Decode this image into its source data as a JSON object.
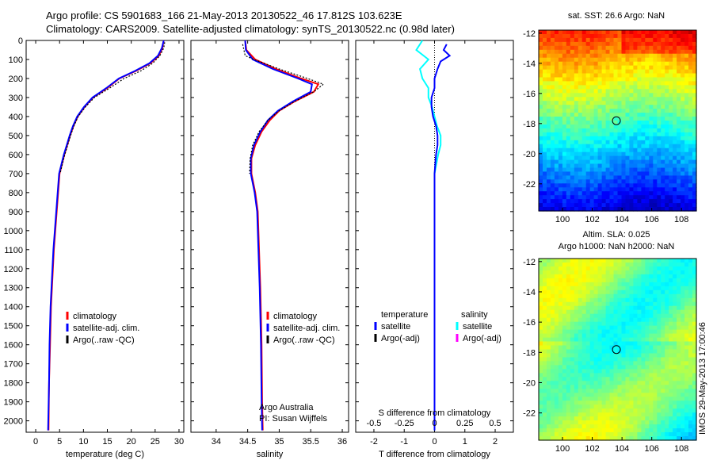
{
  "title": {
    "line1": "Argo profile: CS 5901683_166 21-May-2013 20130522_46 17.812S 103.623E",
    "line2": "Climatology: CARS2009. Satellite-adjusted climatology: synTS_20130522.nc (0.98d later)"
  },
  "maps": {
    "sst_title": "sat. SST: 26.6 Argo: NaN",
    "sla_title_1": "Altim. SLA: 0.025",
    "sla_title_2": "Argo h1000: NaN h2000: NaN"
  },
  "stamp": "IMOS 29-May-2013 17:00:46",
  "colors": {
    "climatology": "#ff0000",
    "satellite": "#0000ff",
    "argo": "#000000",
    "sal_satellite": "#00ffff",
    "sal_argo": "#ff00ff",
    "marker": "#000000"
  },
  "chart_data": [
    {
      "type": "line",
      "xlabel": "temperature (deg C)",
      "ylabel": "",
      "xlim": [
        -2,
        31
      ],
      "ylim": [
        2060,
        0
      ],
      "xticks": [
        0,
        5,
        10,
        15,
        20,
        25,
        30
      ],
      "yticks": [
        0,
        100,
        200,
        300,
        400,
        500,
        600,
        700,
        800,
        900,
        1000,
        1100,
        1200,
        1300,
        1400,
        1500,
        1600,
        1700,
        1800,
        1900,
        2000
      ],
      "legend": [
        "climatology",
        "satellite-adj. clim.",
        "Argo(..raw -QC)"
      ],
      "series": [
        {
          "name": "climatology",
          "x": [
            26.8,
            26.5,
            25.8,
            24.0,
            21.0,
            17.5,
            15.0,
            12.0,
            10.2,
            8.8,
            7.9,
            7.2,
            6.6,
            6.0,
            5.5,
            5.0,
            4.7,
            4.4,
            4.1,
            3.8,
            3.6,
            3.4,
            3.2,
            3.0,
            2.8,
            2.7
          ],
          "y": [
            0,
            40,
            80,
            120,
            160,
            200,
            250,
            300,
            350,
            400,
            450,
            500,
            550,
            600,
            650,
            700,
            800,
            900,
            1000,
            1100,
            1200,
            1300,
            1400,
            1600,
            1800,
            2050
          ]
        },
        {
          "name": "satellite-adj. clim.",
          "x": [
            26.8,
            26.4,
            25.6,
            23.8,
            20.8,
            17.4,
            14.8,
            11.9,
            10.1,
            8.7,
            7.8,
            7.1,
            6.5,
            5.9,
            5.4,
            4.9,
            4.6,
            4.3,
            4.0,
            3.7,
            3.5,
            3.3,
            3.1,
            2.9,
            2.8,
            2.6
          ],
          "y": [
            0,
            40,
            80,
            120,
            160,
            200,
            250,
            300,
            350,
            400,
            450,
            500,
            550,
            600,
            650,
            700,
            800,
            900,
            1000,
            1100,
            1200,
            1300,
            1400,
            1600,
            1800,
            2050
          ]
        },
        {
          "name": "Argo(..raw -QC)",
          "x": [
            27.0,
            26.8,
            26.0,
            24.5,
            22.0,
            18.5,
            15.5,
            12.3,
            10.4,
            8.9,
            8.0,
            7.3,
            6.7,
            6.1,
            5.6,
            5.1
          ],
          "y": [
            10,
            40,
            80,
            120,
            160,
            200,
            250,
            300,
            350,
            400,
            450,
            500,
            550,
            600,
            650,
            700
          ]
        }
      ]
    },
    {
      "type": "line",
      "xlabel": "salinity",
      "xlim": [
        33.6,
        36.1
      ],
      "ylim": [
        2060,
        0
      ],
      "xticks": [
        34,
        34.5,
        35,
        35.5,
        36
      ],
      "legend": [
        "climatology",
        "satellite-adj. clim.",
        "Argo(..raw -QC)"
      ],
      "annotation": [
        "Argo Australia",
        "PI: Susan Wijffels"
      ],
      "series": [
        {
          "name": "climatology",
          "x": [
            34.46,
            34.48,
            34.62,
            34.95,
            35.35,
            35.62,
            35.55,
            35.25,
            35.0,
            34.85,
            34.72,
            34.62,
            34.56,
            34.56,
            34.62,
            34.66,
            34.68,
            34.7,
            34.72,
            34.73,
            34.74
          ],
          "y": [
            0,
            50,
            100,
            150,
            200,
            230,
            270,
            320,
            370,
            420,
            480,
            550,
            620,
            700,
            800,
            900,
            1100,
            1300,
            1600,
            1900,
            2050
          ]
        },
        {
          "name": "satellite-adj. clim.",
          "x": [
            34.46,
            34.47,
            34.58,
            34.9,
            35.3,
            35.52,
            35.5,
            35.22,
            34.98,
            34.82,
            34.7,
            34.6,
            34.55,
            34.55,
            34.61,
            34.65,
            34.67,
            34.69,
            34.71,
            34.72,
            34.73
          ],
          "y": [
            0,
            50,
            100,
            150,
            200,
            230,
            270,
            320,
            370,
            420,
            480,
            550,
            620,
            700,
            800,
            900,
            1100,
            1300,
            1600,
            1900,
            2050
          ]
        },
        {
          "name": "Argo(..raw -QC)",
          "x": [
            34.42,
            34.46,
            34.6,
            35.0,
            35.45,
            35.7,
            35.55,
            35.25,
            35.0,
            34.82,
            34.68,
            34.58,
            34.54,
            34.53
          ],
          "y": [
            20,
            80,
            100,
            150,
            200,
            230,
            270,
            320,
            370,
            420,
            480,
            550,
            620,
            700
          ]
        }
      ]
    },
    {
      "type": "line",
      "xlabel": "T difference from climatology",
      "xlabel_top": "S difference from climatology",
      "xlim": [
        -2.6,
        2.6
      ],
      "ylim": [
        2060,
        0
      ],
      "xticks": [
        -2,
        -1,
        0,
        1,
        2
      ],
      "xticks_s": [
        -0.5,
        -0.25,
        0,
        0.25,
        0.5
      ],
      "legend": {
        "temperature": [
          "satellite",
          "Argo(-adj)"
        ],
        "salinity": [
          "satellite",
          "Argo(-adj)"
        ],
        "temperature_title": "temperature",
        "salinity_title": "salinity"
      },
      "series": [
        {
          "name": "temperature satellite",
          "x": [
            0.4,
            0.3,
            0.5,
            0.2,
            0.1,
            0.0,
            0.0,
            -0.1,
            -0.1,
            -0.05,
            0.05,
            0.1,
            0.1,
            0.05,
            0.0,
            0.0,
            0.0,
            0.0,
            0.0
          ],
          "y": [
            20,
            50,
            80,
            110,
            150,
            200,
            250,
            300,
            350,
            400,
            450,
            500,
            550,
            600,
            700,
            800,
            1000,
            1500,
            2050
          ]
        },
        {
          "name": "salinity satellite",
          "x": [
            -0.1,
            -0.15,
            -0.05,
            -0.12,
            -0.1,
            -0.05,
            -0.05,
            -0.02,
            0.0,
            0.02,
            0.05,
            0.05,
            0.03,
            0.0,
            0.0,
            0.0,
            0.0
          ],
          "y": [
            0,
            50,
            100,
            150,
            200,
            250,
            300,
            350,
            400,
            450,
            500,
            550,
            600,
            700,
            1000,
            1500,
            2050
          ]
        }
      ]
    }
  ]
}
